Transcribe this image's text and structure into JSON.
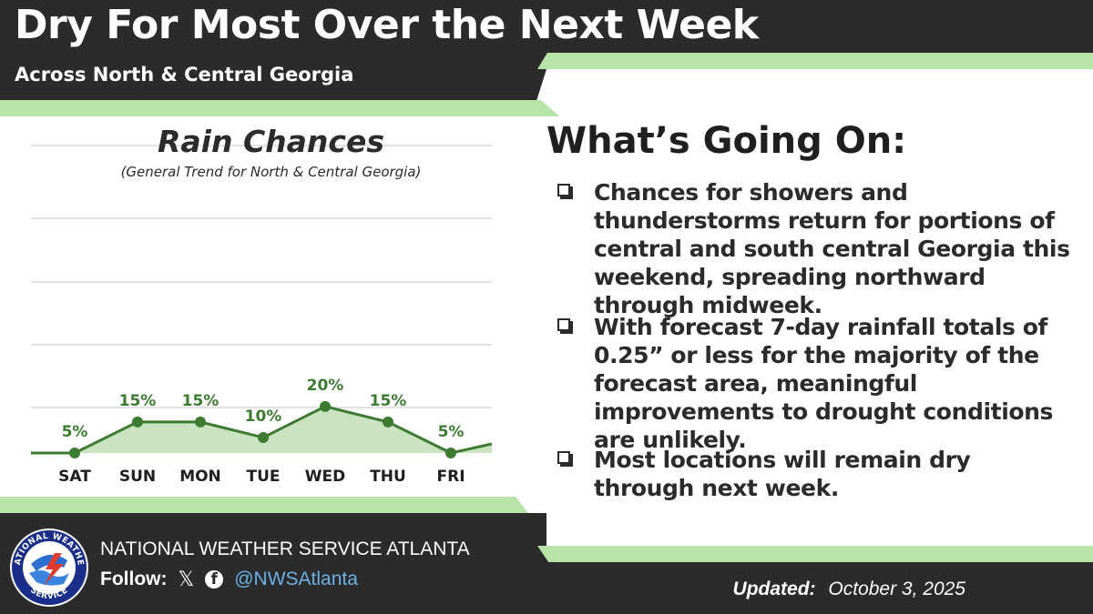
{
  "header": {
    "title": "Dry For Most Over the Next Week",
    "subtitle": "Across North & Central Georgia"
  },
  "colors": {
    "dark": "#2b2b2b",
    "accent_green": "#b8e3a9",
    "line_green": "#3d7a32",
    "area_green": "#c9e2c0",
    "link_blue": "#6cb2e6"
  },
  "chart_data": {
    "type": "area",
    "title": "Rain Chances",
    "subtitle": "(General Trend for North & Central Georgia)",
    "categories": [
      "SAT",
      "SUN",
      "MON",
      "TUE",
      "WED",
      "THU",
      "FRI"
    ],
    "values": [
      5,
      15,
      15,
      10,
      20,
      15,
      5
    ],
    "labels": [
      "5%",
      "15%",
      "15%",
      "10%",
      "20%",
      "15%",
      "5%"
    ],
    "unit": "%",
    "ylim": [
      5,
      100
    ],
    "grid": true
  },
  "panel": {
    "title": "What’s Going On:",
    "bullets": [
      "Chances for showers and thunderstorms return for portions of central and south central Georgia this weekend, spreading northward through midweek.",
      "With forecast 7-day rainfall totals of 0.25” or less for the majority of the forecast area, meaningful improvements to drought conditions are unlikely.",
      "Most locations will remain dry through next week."
    ]
  },
  "footer": {
    "org_name": "NATIONAL WEATHER SERVICE ATLANTA",
    "follow_label": "Follow:",
    "x_icon": "x-logo-icon",
    "facebook_icon": "facebook-icon",
    "handle": "@NWSAtlanta",
    "updated_label": "Updated:",
    "updated_date": "October 3, 2025"
  },
  "logo": {
    "top_text": "NATIONAL WEATHER",
    "bottom_text": "SERVICE"
  }
}
